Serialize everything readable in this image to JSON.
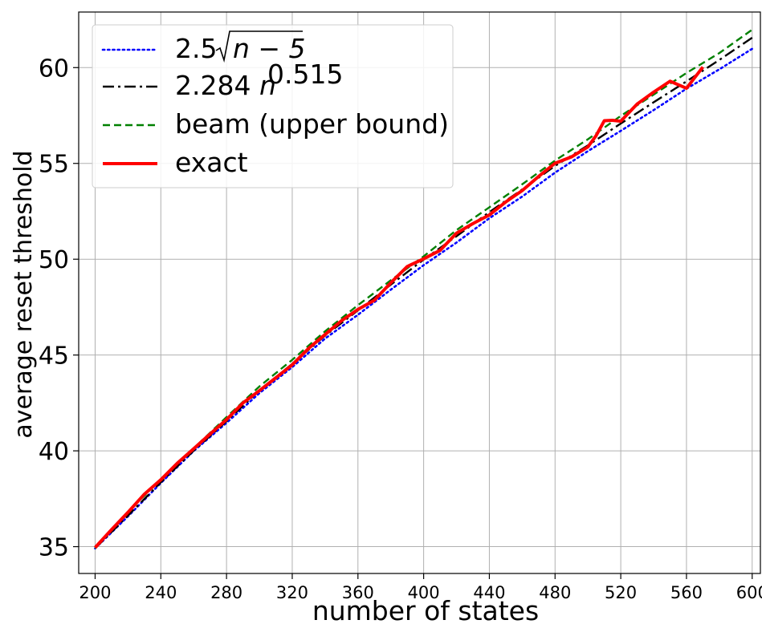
{
  "chart_data": {
    "type": "line",
    "xlabel": "number of states",
    "ylabel": "average reset threshold",
    "xlim": [
      190,
      605
    ],
    "ylim": [
      33.6,
      62.9
    ],
    "xticks": [
      200,
      240,
      280,
      320,
      360,
      400,
      440,
      480,
      520,
      560,
      600
    ],
    "xtick_labels": [
      "200",
      "240",
      "280",
      "320",
      "360",
      "400",
      "440",
      "480",
      "520",
      "560",
      "600"
    ],
    "yticks": [
      35,
      40,
      45,
      50,
      55,
      60
    ],
    "ytick_labels": [
      "35",
      "40",
      "45",
      "50",
      "55",
      "60"
    ],
    "grid": true,
    "legend": {
      "position": "top-left",
      "entries": [
        {
          "prefix": "2.5",
          "math": "n − 5",
          "style": "dotted"
        },
        {
          "prefix": "2.284 ",
          "math": "n",
          "superscript": "0.515",
          "style": "dashdot"
        },
        {
          "label": "beam (upper bound)",
          "style": "dashed"
        },
        {
          "label": "exact",
          "style": "solid"
        }
      ]
    },
    "series": [
      {
        "key": "sqrt",
        "color": "#0000ff",
        "style": "dotted",
        "x": [
          200,
          220,
          240,
          260,
          280,
          300,
          320,
          340,
          360,
          380,
          400,
          420,
          440,
          460,
          480,
          500,
          520,
          540,
          560,
          580,
          600
        ],
        "y": [
          34.91,
          36.58,
          38.32,
          39.99,
          41.46,
          43.01,
          44.37,
          45.86,
          47.1,
          48.41,
          49.69,
          50.87,
          52.14,
          53.27,
          54.52,
          55.64,
          56.7,
          57.78,
          58.9,
          59.91,
          60.98
        ]
      },
      {
        "key": "power",
        "color": "#000000",
        "style": "dashdot",
        "x": [
          200,
          220,
          240,
          260,
          280,
          300,
          320,
          340,
          360,
          380,
          400,
          420,
          440,
          460,
          480,
          500,
          520,
          540,
          560,
          580,
          600
        ],
        "y": [
          34.91,
          36.62,
          38.36,
          40.01,
          41.55,
          43.15,
          44.54,
          46.01,
          47.33,
          48.67,
          49.98,
          51.2,
          52.46,
          53.64,
          54.87,
          55.94,
          57.08,
          58.19,
          59.28,
          60.4,
          61.56
        ]
      },
      {
        "key": "beam",
        "color": "#008000",
        "style": "dashed",
        "x": [
          200,
          220,
          240,
          260,
          280,
          300,
          320,
          340,
          360,
          380,
          400,
          420,
          440,
          460,
          480,
          500,
          520,
          540,
          560,
          580,
          600
        ],
        "y": [
          34.91,
          36.81,
          38.51,
          40.13,
          41.76,
          43.36,
          44.75,
          46.24,
          47.6,
          48.9,
          50.15,
          51.52,
          52.71,
          53.91,
          55.15,
          56.26,
          57.48,
          58.59,
          59.72,
          60.76,
          61.98
        ]
      },
      {
        "key": "exact",
        "color": "#ff0000",
        "style": "solid",
        "x": [
          200,
          210,
          220,
          230,
          240,
          250,
          260,
          270,
          280,
          290,
          300,
          310,
          320,
          330,
          340,
          350,
          360,
          370,
          380,
          390,
          400,
          410,
          420,
          430,
          440,
          450,
          460,
          470,
          480,
          490,
          500,
          505,
          510,
          515,
          520,
          530,
          540,
          550,
          560,
          570
        ],
        "y": [
          34.95,
          35.89,
          36.79,
          37.74,
          38.49,
          39.35,
          40.11,
          40.88,
          41.63,
          42.5,
          43.14,
          43.81,
          44.49,
          45.35,
          46.07,
          46.79,
          47.38,
          47.86,
          48.77,
          49.62,
          50.02,
          50.46,
          51.36,
          51.86,
          52.31,
          52.99,
          53.58,
          54.32,
          55.01,
          55.34,
          55.86,
          56.45,
          57.23,
          57.25,
          57.2,
          58.1,
          58.72,
          59.29,
          58.92,
          60.03
        ]
      }
    ]
  }
}
